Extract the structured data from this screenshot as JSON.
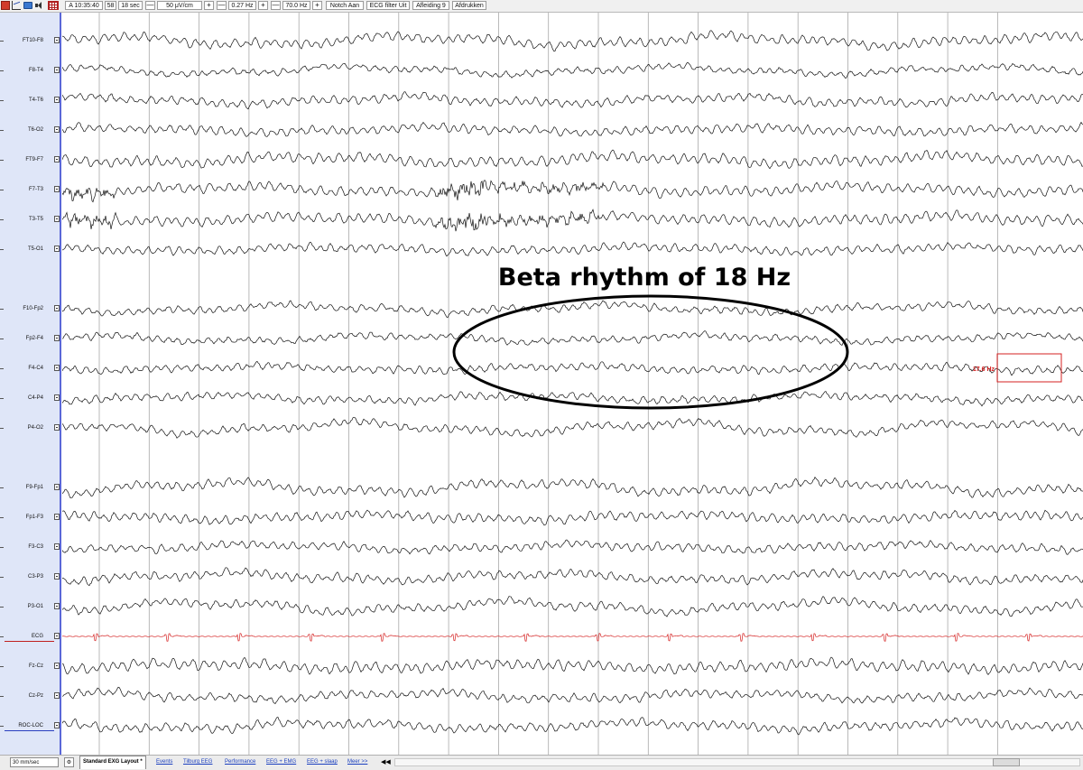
{
  "toolbar": {
    "icons": [
      "app-icon",
      "chart-icon",
      "folder-icon",
      "speaker-icon",
      "grid-icon"
    ],
    "time": "A 10:35:40",
    "page": "58",
    "duration": "18 sec",
    "minus": "—",
    "plus": "+",
    "sensitivity": "50 μV/cm",
    "highpass": "0.27 Hz",
    "lowpass": "70.0 Hz",
    "notch": "Notch Aan",
    "ecg_filter": "ECG filter Uit",
    "montage": "Afleiding 9",
    "print": "Afdrukken"
  },
  "channels": [
    {
      "label": "FT10-F8"
    },
    {
      "label": "F8-T4"
    },
    {
      "label": "T4-T6"
    },
    {
      "label": "T6-O2"
    },
    {
      "label": "FT9-F7"
    },
    {
      "label": "F7-T3"
    },
    {
      "label": "T3-T5"
    },
    {
      "label": "T5-O1"
    },
    {
      "label": "F10-Fp2"
    },
    {
      "label": "Fp2-F4"
    },
    {
      "label": "F4-C4"
    },
    {
      "label": "C4-P4"
    },
    {
      "label": "P4-O2"
    },
    {
      "label": "F9-Fp1"
    },
    {
      "label": "Fp1-F3"
    },
    {
      "label": "F3-C3"
    },
    {
      "label": "C3-P3"
    },
    {
      "label": "P3-O1"
    },
    {
      "label": "ECG"
    },
    {
      "label": "Fz-Cz"
    },
    {
      "label": "Cz-Pz"
    },
    {
      "label": "ROC-LOC"
    }
  ],
  "annotation": {
    "text": "Beta rhythm of 18 Hz",
    "measure_label": "17.6 Hz"
  },
  "colors": {
    "trace": "#111111",
    "ecg": "#d42020",
    "grid": "#a8a8a8",
    "sidebar_border": "#5a67d8",
    "measure": "#d42020"
  },
  "bottombar": {
    "speed": "30 mm/sec",
    "settings_icon": "gear-icon",
    "tabs": [
      {
        "label": "Standard EXG Layout *",
        "active": true
      },
      {
        "label": "Events"
      },
      {
        "label": "Tilburg EEG"
      },
      {
        "label": "Performance"
      },
      {
        "label": "EEG + EMG"
      },
      {
        "label": "EEG + slaap"
      },
      {
        "label": "Meer >>"
      }
    ],
    "nav_left": "◀◀",
    "nav_right": "▶"
  }
}
